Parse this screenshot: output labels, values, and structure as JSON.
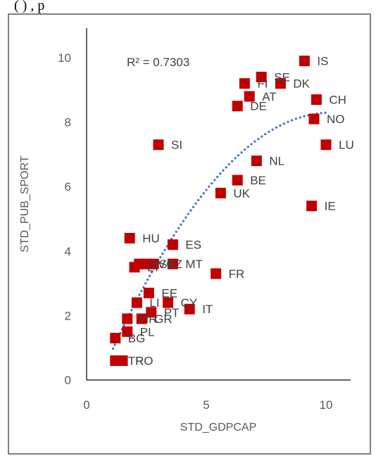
{
  "top_cut_text": "(                    ) ,        p",
  "chart_data": {
    "type": "scatter",
    "xlabel": "STD_GDPCAP",
    "ylabel": "STD_PUB_SPORT",
    "xlim": [
      0,
      11
    ],
    "ylim": [
      0,
      11
    ],
    "xticks": [
      "0",
      "5",
      "10"
    ],
    "yticks": [
      "0",
      "2",
      "4",
      "6",
      "8",
      "10"
    ],
    "annotation": "R² = 0.7303",
    "marker_color": "#c00000",
    "trend_color": "#4472c4",
    "trendline": {
      "type": "polynomial",
      "x_range": [
        1.1,
        10.0
      ],
      "peak": [
        9.7,
        8.3
      ]
    },
    "grid": false,
    "legend": "none",
    "points": [
      {
        "label": "IS",
        "x": 9.1,
        "y": 9.9
      },
      {
        "label": "SE",
        "x": 7.3,
        "y": 9.4
      },
      {
        "label": "DK",
        "x": 8.1,
        "y": 9.2
      },
      {
        "label": "FI",
        "x": 6.6,
        "y": 9.2
      },
      {
        "label": "AT",
        "x": 6.8,
        "y": 8.8
      },
      {
        "label": "DE",
        "x": 6.3,
        "y": 8.5
      },
      {
        "label": "CH",
        "x": 9.6,
        "y": 8.7
      },
      {
        "label": "NO",
        "x": 9.5,
        "y": 8.1
      },
      {
        "label": "LU",
        "x": 10.0,
        "y": 7.3
      },
      {
        "label": "SI",
        "x": 3.0,
        "y": 7.3
      },
      {
        "label": "NL",
        "x": 7.1,
        "y": 6.8
      },
      {
        "label": "BE",
        "x": 6.3,
        "y": 6.2
      },
      {
        "label": "UK",
        "x": 5.6,
        "y": 5.8
      },
      {
        "label": "IE",
        "x": 9.4,
        "y": 5.4
      },
      {
        "label": "HU",
        "x": 1.8,
        "y": 4.4
      },
      {
        "label": "ES",
        "x": 3.6,
        "y": 4.2
      },
      {
        "label": "MT",
        "x": 3.6,
        "y": 3.6
      },
      {
        "label": "CZ",
        "x": 2.8,
        "y": 3.6
      },
      {
        "label": "SK",
        "x": 2.5,
        "y": 3.6
      },
      {
        "label": "LV",
        "x": 2.2,
        "y": 3.6
      },
      {
        "label": "LT",
        "x": 2.0,
        "y": 3.5
      },
      {
        "label": "FR",
        "x": 5.4,
        "y": 3.3
      },
      {
        "label": "EE",
        "x": 2.6,
        "y": 2.7
      },
      {
        "label": "LI",
        "x": 2.1,
        "y": 2.4
      },
      {
        "label": "CY",
        "x": 3.4,
        "y": 2.4
      },
      {
        "label": "IT",
        "x": 4.3,
        "y": 2.2
      },
      {
        "label": "PT",
        "x": 2.7,
        "y": 2.1
      },
      {
        "label": "GR",
        "x": 2.3,
        "y": 1.9
      },
      {
        "label": "HR",
        "x": 1.7,
        "y": 1.9
      },
      {
        "label": "PL",
        "x": 1.7,
        "y": 1.5
      },
      {
        "label": "BG",
        "x": 1.2,
        "y": 1.3
      },
      {
        "label": "TR",
        "x": 1.2,
        "y": 0.6
      },
      {
        "label": "RO",
        "x": 1.5,
        "y": 0.6
      }
    ]
  }
}
